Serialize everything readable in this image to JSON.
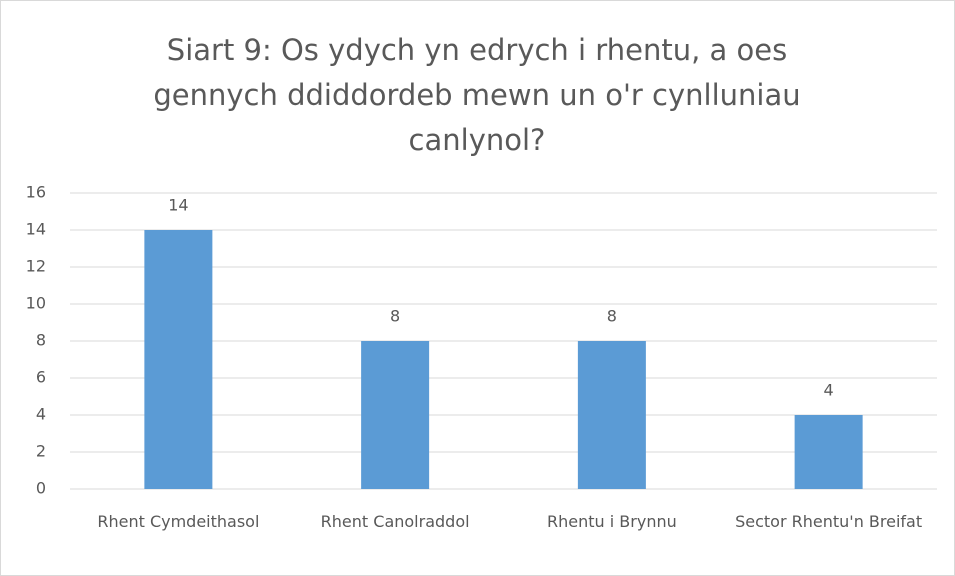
{
  "chart_data": {
    "type": "bar",
    "title": "Siart 9: Os ydych yn edrych i rhentu, a oes gennych ddiddordeb mewn un o'r cynlluniau canlynol?",
    "categories": [
      "Rhent Cymdeithasol",
      "Rhent Canolraddol",
      "Rhentu i Brynnu",
      "Sector Rhentu'n Breifat"
    ],
    "values": [
      14,
      8,
      8,
      4
    ],
    "color": "#5b9bd5",
    "ylim": [
      0,
      16
    ],
    "yticks": [
      0,
      2,
      4,
      6,
      8,
      10,
      12,
      14,
      16
    ],
    "grid": true
  }
}
